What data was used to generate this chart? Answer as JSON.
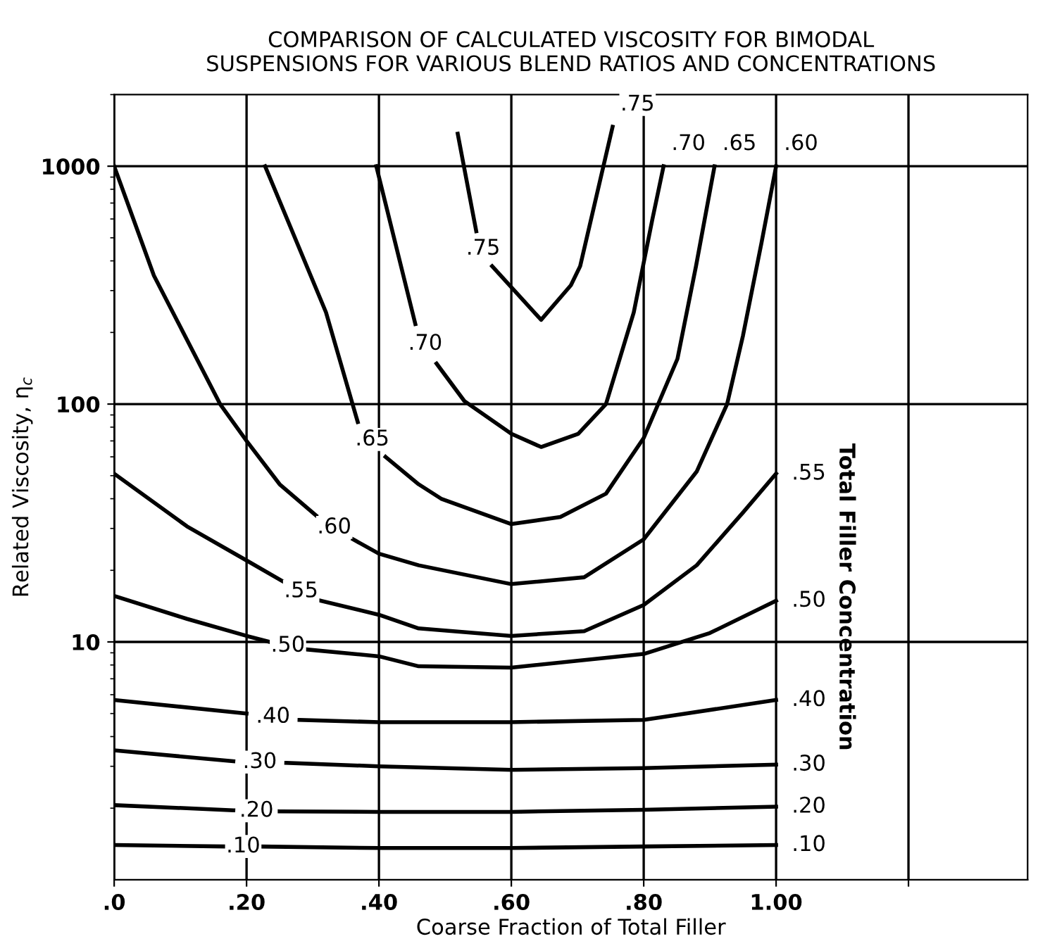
{
  "chart_data": {
    "type": "line",
    "title": "COMPARISON OF CALCULATED VISCOSITY FOR BIMODAL\nSUSPENSIONS FOR VARIOUS BLEND RATIOS AND CONCENTRATIONS",
    "xlabel": "Coarse Fraction of Total Filler",
    "ylabel": "Related Viscosity, η$_{c}$",
    "y2label": "Total Filler Concentration",
    "log": "y",
    "grid": true,
    "legend": false,
    "marker": "none",
    "line_style": "solid",
    "xlim": [
      0,
      1.38
    ],
    "ylim": [
      1,
      2000
    ],
    "xticks": [
      {
        "value": 0,
        "label": ".0"
      },
      {
        "value": 0.2,
        "label": ".20"
      },
      {
        "value": 0.4,
        "label": ".40"
      },
      {
        "value": 0.6,
        "label": ".60"
      },
      {
        "value": 0.8,
        "label": ".80"
      },
      {
        "value": 1.0,
        "label": "1.00"
      },
      {
        "value": 1.2,
        "label": null
      }
    ],
    "yticks": [
      10,
      100,
      1000
    ],
    "series": [
      {
        "name": ".10",
        "color": "#000000",
        "x": [
          0,
          0.17,
          0.175,
          0.215,
          0.22,
          0.4,
          0.6,
          0.8,
          1.0
        ],
        "values": [
          1.4,
          1.38,
          null,
          null,
          1.38,
          1.36,
          1.36,
          1.38,
          1.4
        ]
      },
      {
        "name": ".20",
        "color": "#000000",
        "x": [
          0,
          0.18,
          0.19,
          0.24,
          0.25,
          0.4,
          0.6,
          0.8,
          1.0
        ],
        "values": [
          2.06,
          1.96,
          null,
          null,
          1.94,
          1.93,
          1.93,
          1.97,
          2.03
        ]
      },
      {
        "name": ".30",
        "color": "#000000",
        "x": [
          0,
          0.18,
          0.19,
          0.25,
          0.26,
          0.4,
          0.6,
          0.8,
          1.0
        ],
        "values": [
          3.5,
          3.15,
          null,
          null,
          3.1,
          3.0,
          2.9,
          2.95,
          3.05
        ]
      },
      {
        "name": ".40",
        "color": "#000000",
        "x": [
          0,
          0.2,
          0.21,
          0.27,
          0.28,
          0.4,
          0.6,
          0.8,
          1.0
        ],
        "values": [
          5.7,
          5.0,
          null,
          null,
          4.7,
          4.6,
          4.6,
          4.7,
          5.7
        ]
      },
      {
        "name": ".50",
        "color": "#000000",
        "x": [
          0,
          0.11,
          0.2,
          0.235,
          0.24,
          0.285,
          0.29,
          0.4,
          0.46,
          0.6,
          0.8,
          0.9,
          1.0
        ],
        "values": [
          15.6,
          12.5,
          10.6,
          10,
          null,
          null,
          9.3,
          8.7,
          7.9,
          7.8,
          8.9,
          10.9,
          14.9
        ]
      },
      {
        "name": ".55",
        "color": "#000000",
        "x": [
          0,
          0.11,
          0.2,
          0.256,
          0.26,
          0.305,
          0.312,
          0.4,
          0.46,
          0.6,
          0.71,
          0.8,
          0.88,
          0.95,
          1.0
        ],
        "values": [
          51,
          30.6,
          22,
          17.9,
          null,
          null,
          14.9,
          13,
          11.4,
          10.6,
          11.1,
          14.3,
          21,
          35,
          51
        ]
      },
      {
        "name": ".60",
        "color": "#000000",
        "x": [
          0,
          0.06,
          0.16,
          0.2,
          0.25,
          0.305,
          0.31,
          0.355,
          0.361,
          0.4,
          0.46,
          0.6,
          0.71,
          0.8,
          0.88,
          0.926,
          0.95,
          0.978,
          1.0
        ],
        "values": [
          1000,
          347,
          100,
          70,
          46,
          34,
          null,
          null,
          27,
          23.5,
          21,
          17.5,
          18.7,
          27,
          52,
          100,
          194,
          477,
          1000
        ]
      },
      {
        "name": ".65",
        "color": "#000000",
        "x": [
          0.228,
          0.32,
          0.368,
          0.375,
          0.405,
          0.41,
          0.46,
          0.494,
          0.6,
          0.674,
          0.743,
          0.8,
          0.851,
          0.879,
          0.907
        ],
        "values": [
          1000,
          243,
          84,
          null,
          null,
          60,
          46,
          40,
          31.3,
          33.5,
          42,
          72,
          155,
          380,
          1000
        ]
      },
      {
        "name": ".70",
        "color": "#000000",
        "x": [
          0.396,
          0.455,
          0.46,
          0.48,
          0.487,
          0.529,
          0.6,
          0.645,
          0.701,
          0.743,
          0.785,
          0.813,
          0.83
        ],
        "values": [
          1000,
          217,
          null,
          null,
          148,
          103,
          75,
          66,
          75,
          100,
          243,
          596,
          1000
        ]
      },
      {
        "name": ".75",
        "color": "#000000",
        "x": [
          0.519,
          0.547,
          0.55,
          0.565,
          0.571,
          0.645,
          0.69,
          0.704,
          0.753
        ],
        "values": [
          1370,
          533,
          null,
          null,
          380,
          226,
          316,
          380,
          1466
        ]
      }
    ]
  }
}
